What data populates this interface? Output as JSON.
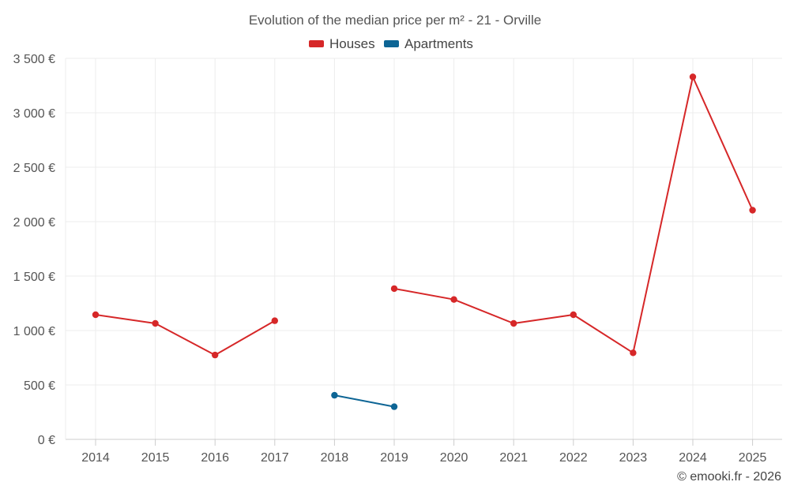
{
  "chart_data": {
    "type": "line",
    "title": "Evolution of the median price per m² - 21 - Orville",
    "categories": [
      "2014",
      "2015",
      "2016",
      "2017",
      "2018",
      "2019",
      "2020",
      "2021",
      "2022",
      "2023",
      "2024",
      "2025"
    ],
    "ylim": [
      0,
      3500
    ],
    "yticks": [
      0,
      500,
      1000,
      1500,
      2000,
      2500,
      3000,
      3500
    ],
    "ytick_labels": [
      "0 €",
      "500 €",
      "1 000 €",
      "1 500 €",
      "2 000 €",
      "2 500 €",
      "3 000 €",
      "3 500 €"
    ],
    "grid": true,
    "legend_position": "top-center",
    "series": [
      {
        "name": "Houses",
        "color": "#d62728",
        "values": [
          1145,
          1065,
          775,
          1090,
          null,
          1385,
          1285,
          1065,
          1145,
          795,
          3330,
          2105
        ]
      },
      {
        "name": "Apartments",
        "color": "#0d6595",
        "values": [
          null,
          null,
          null,
          null,
          405,
          300,
          null,
          null,
          null,
          null,
          null,
          null
        ]
      }
    ]
  },
  "credit": "© emooki.fr - 2026"
}
